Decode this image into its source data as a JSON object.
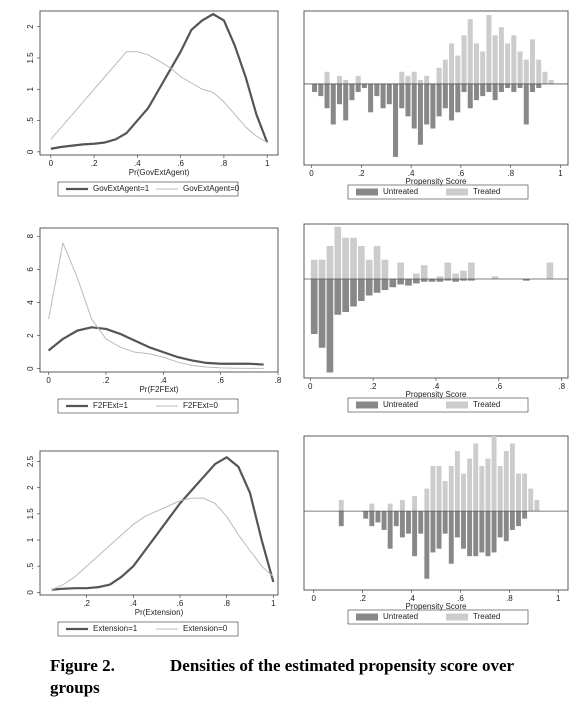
{
  "chart_data": [
    {
      "type": "line",
      "xlabel": "Pr(GovExtAgent)",
      "x": [
        0,
        0.05,
        0.1,
        0.15,
        0.2,
        0.25,
        0.3,
        0.35,
        0.4,
        0.45,
        0.5,
        0.55,
        0.6,
        0.65,
        0.7,
        0.75,
        0.8,
        0.85,
        0.9,
        0.95,
        1
      ],
      "series": [
        {
          "name": "GovExtAgent=1",
          "color": "#555555",
          "width": 2.2,
          "values": [
            0.05,
            0.08,
            0.1,
            0.12,
            0.13,
            0.15,
            0.2,
            0.3,
            0.5,
            0.7,
            1.0,
            1.3,
            1.6,
            1.95,
            2.1,
            2.2,
            2.1,
            1.7,
            1.2,
            0.6,
            0.15
          ]
        },
        {
          "name": "GovExtAgent=0",
          "color": "#bbbbbb",
          "width": 1,
          "values": [
            0.2,
            0.4,
            0.6,
            0.8,
            1.0,
            1.2,
            1.4,
            1.6,
            1.6,
            1.55,
            1.45,
            1.35,
            1.2,
            1.1,
            1.0,
            0.95,
            0.8,
            0.6,
            0.4,
            0.25,
            0.15
          ]
        }
      ],
      "xlim": [
        -0.05,
        1.05
      ],
      "xticks": [
        0,
        {
          "value": 0.2,
          "label": ".2"
        },
        {
          "value": 0.4,
          "label": ".4"
        },
        {
          "value": 0.6,
          "label": ".6"
        },
        {
          "value": 0.8,
          "label": ".8"
        },
        1
      ],
      "ylim": [
        -0.05,
        2.25
      ],
      "yticks": [
        0,
        {
          "value": 0.5,
          "label": ".5"
        },
        1,
        1.5,
        2
      ]
    },
    {
      "type": "histogram",
      "xlabel": "Propensity Score",
      "bins": [
        0,
        0.025,
        0.05,
        0.075,
        0.1,
        0.125,
        0.15,
        0.175,
        0.2,
        0.225,
        0.25,
        0.275,
        0.3,
        0.325,
        0.35,
        0.375,
        0.4,
        0.425,
        0.45,
        0.475,
        0.5,
        0.525,
        0.55,
        0.575,
        0.6,
        0.625,
        0.65,
        0.675,
        0.7,
        0.725,
        0.75,
        0.775,
        0.8,
        0.825,
        0.85,
        0.875,
        0.9,
        0.925,
        0.95,
        0.975,
        1
      ],
      "series": [
        {
          "name": "Untreated",
          "color": "#888888",
          "side": "down",
          "values": [
            0.1,
            0.15,
            0.3,
            0.5,
            0.25,
            0.45,
            0.2,
            0.1,
            0.05,
            0.35,
            0.15,
            0.3,
            0.25,
            0.9,
            0.3,
            0.4,
            0.55,
            0.75,
            0.5,
            0.55,
            0.4,
            0.3,
            0.45,
            0.35,
            0.1,
            0.3,
            0.2,
            0.15,
            0.1,
            0.2,
            0.1,
            0.05,
            0.1,
            0.05,
            0.5,
            0.1,
            0.05,
            0,
            0,
            0
          ]
        },
        {
          "name": "Treated",
          "color": "#cccccc",
          "side": "up",
          "values": [
            0,
            0,
            0.15,
            0,
            0.1,
            0.05,
            0,
            0.1,
            0,
            0,
            0,
            0,
            0,
            0,
            0.15,
            0.1,
            0.15,
            0.05,
            0.1,
            0,
            0.2,
            0.3,
            0.5,
            0.35,
            0.6,
            0.8,
            0.5,
            0.4,
            0.85,
            0.6,
            0.7,
            0.5,
            0.6,
            0.4,
            0.3,
            0.55,
            0.3,
            0.15,
            0.05,
            0
          ]
        }
      ],
      "xlim": [
        -0.03,
        1.03
      ],
      "xticks": [
        0,
        {
          "value": 0.2,
          "label": ".2"
        },
        {
          "value": 0.4,
          "label": ".4"
        },
        {
          "value": 0.6,
          "label": ".6"
        },
        {
          "value": 0.8,
          "label": ".8"
        },
        1
      ],
      "ylim": [
        -1,
        0.9
      ]
    },
    {
      "type": "line",
      "xlabel": "Pr(F2FExt)",
      "x": [
        0,
        0.05,
        0.1,
        0.15,
        0.2,
        0.25,
        0.3,
        0.35,
        0.4,
        0.45,
        0.5,
        0.55,
        0.6,
        0.65,
        0.7,
        0.75
      ],
      "series": [
        {
          "name": "F2FExt=1",
          "color": "#555555",
          "width": 2.2,
          "values": [
            1.1,
            1.8,
            2.3,
            2.5,
            2.4,
            2.1,
            1.7,
            1.3,
            1.0,
            0.7,
            0.5,
            0.35,
            0.3,
            0.3,
            0.3,
            0.25
          ]
        },
        {
          "name": "F2FExt=0",
          "color": "#bbbbbb",
          "width": 1,
          "values": [
            3.0,
            7.6,
            5.5,
            3.0,
            1.8,
            1.3,
            1.0,
            0.9,
            0.7,
            0.4,
            0.2,
            0.1,
            0.05,
            0.03,
            0.02,
            0.02
          ]
        }
      ],
      "xlim": [
        -0.03,
        0.8
      ],
      "xticks": [
        0,
        {
          "value": 0.2,
          "label": ".2"
        },
        {
          "value": 0.4,
          "label": ".4"
        },
        {
          "value": 0.6,
          "label": ".6"
        },
        {
          "value": 0.8,
          "label": ".8"
        }
      ],
      "ylim": [
        -0.2,
        8.5
      ],
      "yticks": [
        0,
        2,
        4,
        6,
        8
      ]
    },
    {
      "type": "histogram",
      "xlabel": "Propensity Score",
      "bins": [
        0,
        0.025,
        0.05,
        0.075,
        0.1,
        0.125,
        0.15,
        0.175,
        0.2,
        0.225,
        0.25,
        0.275,
        0.3,
        0.325,
        0.35,
        0.375,
        0.4,
        0.425,
        0.45,
        0.475,
        0.5,
        0.525,
        0.55,
        0.575,
        0.6,
        0.625,
        0.65,
        0.675,
        0.7,
        0.725,
        0.75,
        0.775
      ],
      "series": [
        {
          "name": "Untreated",
          "color": "#888888",
          "side": "down",
          "values": [
            1.0,
            1.25,
            1.7,
            0.65,
            0.6,
            0.5,
            0.4,
            0.3,
            0.25,
            0.2,
            0.15,
            0.1,
            0.12,
            0.08,
            0.05,
            0.05,
            0.05,
            0.03,
            0.05,
            0.03,
            0.03,
            0,
            0,
            0,
            0,
            0,
            0,
            0.03,
            0,
            0,
            0
          ]
        },
        {
          "name": "Treated",
          "color": "#cccccc",
          "side": "up",
          "values": [
            0.35,
            0.35,
            0.6,
            0.95,
            0.75,
            0.75,
            0.6,
            0.35,
            0.6,
            0.35,
            0,
            0.3,
            0,
            0.1,
            0.25,
            0,
            0.05,
            0.3,
            0.1,
            0.15,
            0.3,
            0,
            0,
            0.05,
            0,
            0,
            0,
            0,
            0,
            0,
            0.3
          ]
        }
      ],
      "xlim": [
        -0.02,
        0.82
      ],
      "xticks": [
        0,
        {
          "value": 0.2,
          "label": ".2"
        },
        {
          "value": 0.4,
          "label": ".4"
        },
        {
          "value": 0.6,
          "label": ".6"
        },
        {
          "value": 0.8,
          "label": ".8"
        }
      ],
      "ylim": [
        -1.8,
        1
      ]
    },
    {
      "type": "line",
      "xlabel": "Pr(Extension)",
      "x": [
        0.05,
        0.1,
        0.15,
        0.2,
        0.25,
        0.3,
        0.35,
        0.4,
        0.45,
        0.5,
        0.55,
        0.6,
        0.65,
        0.7,
        0.75,
        0.8,
        0.85,
        0.9,
        0.95,
        1
      ],
      "series": [
        {
          "name": "Extension=1",
          "color": "#555555",
          "width": 2.2,
          "values": [
            0.05,
            0.07,
            0.08,
            0.08,
            0.1,
            0.15,
            0.3,
            0.5,
            0.8,
            1.1,
            1.4,
            1.7,
            1.95,
            2.2,
            2.45,
            2.58,
            2.4,
            1.9,
            1.0,
            0.2
          ]
        },
        {
          "name": "Extension=0",
          "color": "#bbbbbb",
          "width": 1,
          "values": [
            0.05,
            0.15,
            0.3,
            0.5,
            0.7,
            0.9,
            1.1,
            1.3,
            1.45,
            1.55,
            1.65,
            1.75,
            1.8,
            1.8,
            1.7,
            1.45,
            1.1,
            0.8,
            0.5,
            0.3
          ]
        }
      ],
      "xlim": [
        0,
        1.02
      ],
      "xticks": [
        {
          "value": 0.2,
          "label": ".2"
        },
        {
          "value": 0.4,
          "label": ".4"
        },
        {
          "value": 0.6,
          "label": ".6"
        },
        {
          "value": 0.8,
          "label": ".8"
        },
        1
      ],
      "ylim": [
        -0.05,
        2.7
      ],
      "yticks": [
        0,
        {
          "value": 0.5,
          "label": ".5"
        },
        1,
        1.5,
        2,
        2.5
      ]
    },
    {
      "type": "histogram",
      "xlabel": "Propensity Score",
      "bins": [
        0,
        0.025,
        0.05,
        0.075,
        0.1,
        0.125,
        0.15,
        0.175,
        0.2,
        0.225,
        0.25,
        0.275,
        0.3,
        0.325,
        0.35,
        0.375,
        0.4,
        0.425,
        0.45,
        0.475,
        0.5,
        0.525,
        0.55,
        0.575,
        0.6,
        0.625,
        0.65,
        0.675,
        0.7,
        0.725,
        0.75,
        0.775,
        0.8,
        0.825,
        0.85,
        0.875,
        0.9,
        0.925,
        0.95,
        0.975,
        1
      ],
      "series": [
        {
          "name": "Untreated",
          "color": "#888888",
          "side": "down",
          "values": [
            0,
            0,
            0,
            0,
            0.2,
            0,
            0,
            0,
            0.1,
            0.2,
            0.15,
            0.25,
            0.5,
            0.2,
            0.35,
            0.3,
            0.6,
            0.3,
            0.9,
            0.55,
            0.5,
            0.3,
            0.7,
            0.35,
            0.5,
            0.6,
            0.6,
            0.55,
            0.6,
            0.55,
            0.35,
            0.4,
            0.25,
            0.2,
            0.1,
            0,
            0,
            0,
            0,
            0
          ]
        },
        {
          "name": "Treated",
          "color": "#cccccc",
          "side": "up",
          "values": [
            0,
            0,
            0,
            0,
            0.15,
            0,
            0,
            0,
            0,
            0.1,
            0,
            0,
            0.1,
            0,
            0.15,
            0,
            0.2,
            0,
            0.3,
            0.6,
            0.6,
            0.4,
            0.6,
            0.8,
            0.5,
            0.7,
            0.9,
            0.6,
            0.7,
            1.0,
            0.6,
            0.8,
            0.9,
            0.5,
            0.5,
            0.3,
            0.15,
            0,
            0,
            0
          ]
        }
      ],
      "xlim": [
        -0.04,
        1.04
      ],
      "xticks": [
        0,
        {
          "value": 0.2,
          "label": ".2"
        },
        {
          "value": 0.4,
          "label": ".4"
        },
        {
          "value": 0.6,
          "label": ".6"
        },
        {
          "value": 0.8,
          "label": ".8"
        },
        1
      ],
      "ylim": [
        -1.05,
        1.0
      ]
    }
  ],
  "caption": {
    "label": "Figure 2.",
    "text": "Densities of the estimated propensity score over groups"
  }
}
